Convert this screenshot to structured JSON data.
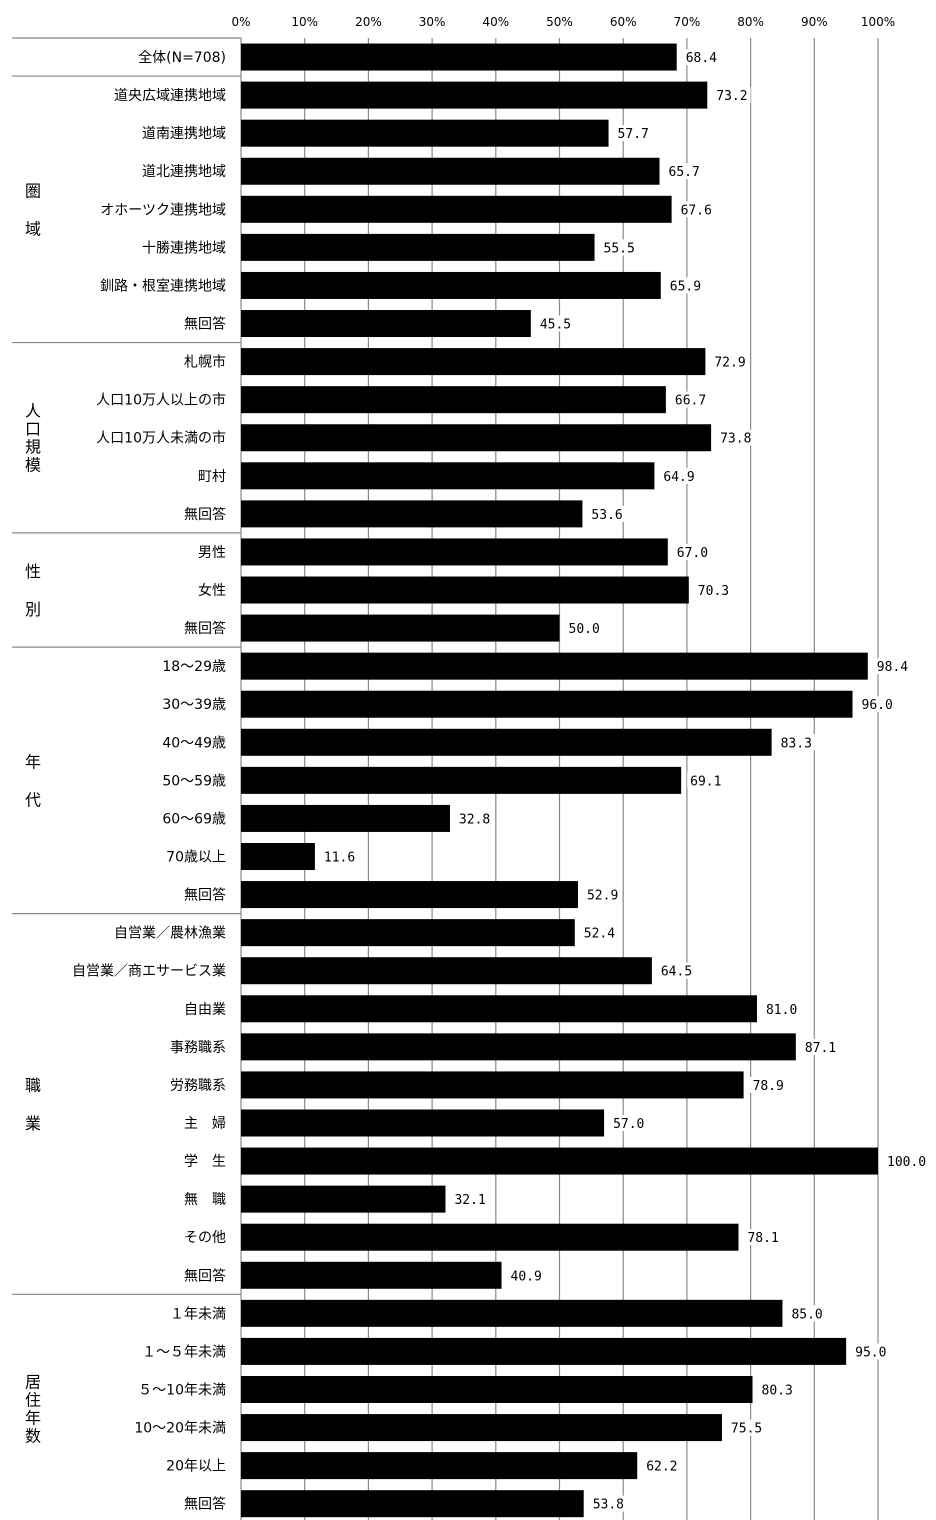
{
  "chart_data": {
    "type": "bar",
    "orientation": "horizontal",
    "xlim": [
      0,
      100
    ],
    "x_ticks": [
      "0%",
      "10%",
      "20%",
      "30%",
      "40%",
      "50%",
      "60%",
      "70%",
      "80%",
      "90%",
      "100%"
    ],
    "grid": true,
    "bar_color": "#000000",
    "groups": [
      {
        "label": "",
        "categories": [
          "全体(N=708)"
        ],
        "values": [
          68.4
        ],
        "value_labels": [
          "68.4"
        ]
      },
      {
        "label": "圏域",
        "categories": [
          "道央広域連携地域",
          "道南連携地域",
          "道北連携地域",
          "オホーツク連携地域",
          "十勝連携地域",
          "釧路・根室連携地域",
          "無回答"
        ],
        "values": [
          73.2,
          57.7,
          65.7,
          67.6,
          55.5,
          65.9,
          45.5
        ],
        "value_labels": [
          "73.2",
          "57.7",
          "65.7",
          "67.6",
          "55.5",
          "65.9",
          "45.5"
        ]
      },
      {
        "label": "人口規模",
        "categories": [
          "札幌市",
          "人口10万人以上の市",
          "人口10万人未満の市",
          "町村",
          "無回答"
        ],
        "values": [
          72.9,
          66.7,
          73.8,
          64.9,
          53.6
        ],
        "value_labels": [
          "72.9",
          "66.7",
          "73.8",
          "64.9",
          "53.6"
        ]
      },
      {
        "label": "性別",
        "categories": [
          "男性",
          "女性",
          "無回答"
        ],
        "values": [
          67.0,
          70.3,
          50.0
        ],
        "value_labels": [
          "67.0",
          "70.3",
          "50.0"
        ]
      },
      {
        "label": "年代",
        "categories": [
          "18～29歳",
          "30～39歳",
          "40～49歳",
          "50～59歳",
          "60～69歳",
          "70歳以上",
          "無回答"
        ],
        "values": [
          98.4,
          96.0,
          83.3,
          69.1,
          32.8,
          11.6,
          52.9
        ],
        "value_labels": [
          "98.4",
          "96.0",
          "83.3",
          "69.1",
          "32.8",
          "11.6",
          "52.9"
        ]
      },
      {
        "label": "職業",
        "categories": [
          "自営業／農林漁業",
          "自営業／商エサービス業",
          "自由業",
          "事務職系",
          "労務職系",
          "主　婦",
          "学　生",
          "無　職",
          "その他",
          "無回答"
        ],
        "values": [
          52.4,
          64.5,
          81.0,
          87.1,
          78.9,
          57.0,
          100.0,
          32.1,
          78.1,
          40.9
        ],
        "value_labels": [
          "52.4",
          "64.5",
          "81.0",
          "87.1",
          "78.9",
          "57.0",
          "100.0",
          "32.1",
          "78.1",
          "40.9"
        ]
      },
      {
        "label": "居住年数",
        "categories": [
          "１年未満",
          "１～５年未満",
          "５～10年未満",
          "10～20年未満",
          "20年以上",
          "無回答"
        ],
        "values": [
          85.0,
          95.0,
          80.3,
          75.5,
          62.2,
          53.8
        ],
        "value_labels": [
          "85.0",
          "95.0",
          "80.3",
          "75.5",
          "62.2",
          "53.8"
        ]
      }
    ]
  }
}
